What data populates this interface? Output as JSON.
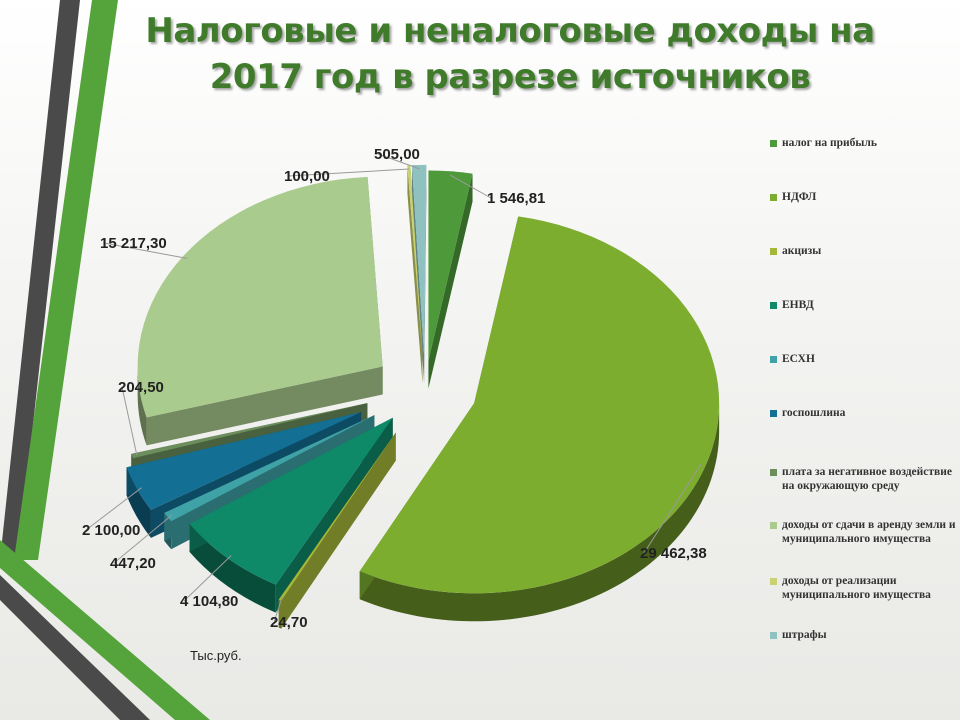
{
  "title": {
    "line1": "Налоговые и неналоговые доходы на",
    "line2": "2017 год в разрезе источников"
  },
  "units_note": "Тыс.руб.",
  "chart_data": {
    "type": "pie",
    "title": "Налоговые и неналоговые доходы на 2017 год в разрезе источников",
    "units": "Тыс.руб.",
    "legend_position": "right",
    "style": "3d-exploded",
    "slices": [
      {
        "name": "налог на прибыль",
        "value": 1546.81,
        "label": "1 546,81",
        "color": "#4e9a3a"
      },
      {
        "name": "НДФЛ",
        "value": 29462.38,
        "label": "29 462,38",
        "color": "#7dad2f"
      },
      {
        "name": "акцизы",
        "value": 24.7,
        "label": "24,70",
        "color": "#a6b83a"
      },
      {
        "name": "ЕНВД",
        "value": 4104.8,
        "label": "4 104,80",
        "color": "#0f8a69"
      },
      {
        "name": "ЕСХН",
        "value": 447.2,
        "label": "447,20",
        "color": "#3fa2a7"
      },
      {
        "name": "госпошлина",
        "value": 2100.0,
        "label": "2 100,00",
        "color": "#136f93"
      },
      {
        "name": "плата за негативное воздействие на окружающую среду",
        "value": 204.5,
        "label": "204,50",
        "color": "#6c8e5c"
      },
      {
        "name": "доходы от сдачи в аренду земли и муниципального имущества",
        "value": 15217.3,
        "label": "15 217,30",
        "color": "#aacb8e"
      },
      {
        "name": "доходы от реализации муниципального имущества",
        "value": 100.0,
        "label": "100,00",
        "color": "#c9d26e"
      },
      {
        "name": "штрафы",
        "value": 505.0,
        "label": "505,00",
        "color": "#8fc1c1"
      }
    ]
  }
}
